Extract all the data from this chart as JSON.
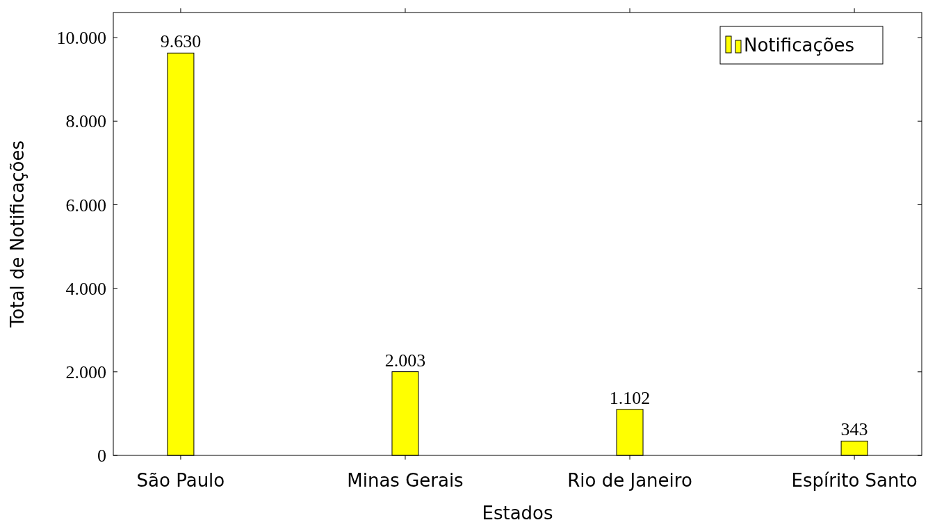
{
  "chart_data": {
    "type": "bar",
    "xlabel": "Estados",
    "ylabel": "Total de Notificações",
    "categories": [
      "São Paulo",
      "Minas Gerais",
      "Rio de Janeiro",
      "Espírito Santo"
    ],
    "series": [
      {
        "name": "Notificações",
        "color": "#ffff00",
        "values": [
          9630,
          2003,
          1102,
          343
        ],
        "value_labels": [
          "9.630",
          "2.003",
          "1.102",
          "343"
        ]
      }
    ],
    "ylim": [
      0,
      10600
    ],
    "yticks": [
      0,
      {
        "value": 2000,
        "label": "2.000"
      },
      {
        "value": 4000,
        "label": "4.000"
      },
      {
        "value": 6000,
        "label": "6.000"
      },
      {
        "value": 8000,
        "label": "8.000"
      },
      {
        "value": 10000,
        "label": "10.000"
      }
    ],
    "legend": "top right",
    "grid": false
  }
}
